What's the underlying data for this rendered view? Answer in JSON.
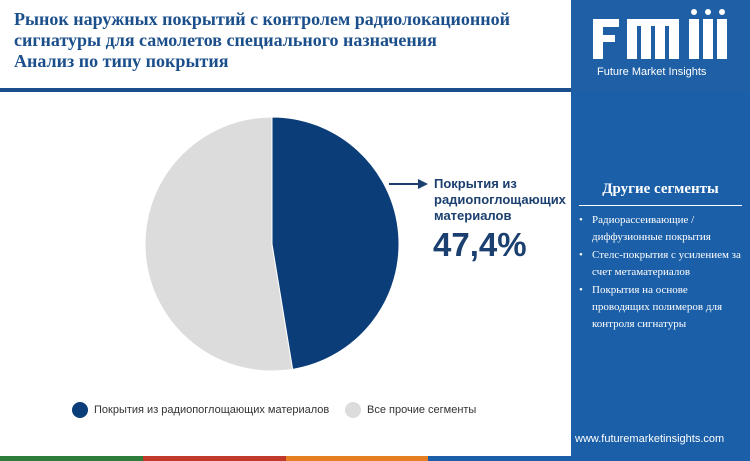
{
  "title_lines": [
    "Рынок наружных покрытий с контролем радиолокационной",
    "сигнатуры для самолетов специального назначения",
    "Анализ по типу покрытия"
  ],
  "brand": {
    "logo_letters": "fmi",
    "logo_name": "Future Market Insights",
    "website": "www.futuremarketinsights.com"
  },
  "colors": {
    "primary": "#0b3d78",
    "secondary": "#dcdcdc",
    "panel": "#1b5fa8",
    "title": "#1b4f8c",
    "strip": [
      "#2f7d3a",
      "#c0392b",
      "#e67e22",
      "#1b5fa8"
    ]
  },
  "callout": {
    "label": "Покрытия из радиопоглощающих материалов",
    "value": "47,4%"
  },
  "chart_data": {
    "type": "pie",
    "slices": [
      {
        "label": "Покрытия из радиопоглощающих материалов",
        "value": 47.4,
        "color": "#0b3d78"
      },
      {
        "label": "Все прочие сегменты",
        "value": 52.6,
        "color": "#dcdcdc"
      }
    ],
    "start_angle": "12 o'clock",
    "direction": "clockwise",
    "legend_position": "bottom"
  },
  "legend": [
    {
      "label": "Покрытия из радиопоглощающих материалов",
      "color": "#0b3d78"
    },
    {
      "label": "Все прочие сегменты",
      "color": "#dcdcdc"
    }
  ],
  "other_segments": {
    "heading": "Другие сегменты",
    "items": [
      "Радиорассеивающие / диффузионные покрытия",
      "Стелс-покрытия с усилением за счет метаматериалов",
      "Покрытия на основе проводящих полимеров для контроля сигнатуры"
    ]
  }
}
